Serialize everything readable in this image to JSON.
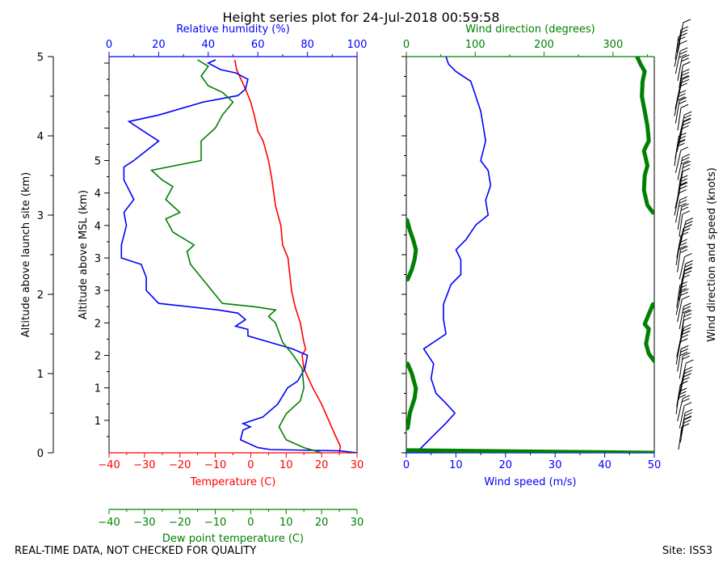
{
  "header": {
    "title": "Height series plot for 24-Jul-2018 00:59:58",
    "footer_left": "REAL-TIME DATA, NOT CHECKED FOR QUALITY",
    "footer_right": "Site: ISS3"
  },
  "colors": {
    "temperature": "#ff0000",
    "humidity": "#0000ff",
    "dewpoint": "#008000",
    "wind_speed": "#0000ff",
    "wind_direction": "#008000",
    "barbs": "#000000"
  },
  "chart_data": [
    {
      "type": "line",
      "name": "thermo-panel",
      "y_left_label": "Altitude above launch site (km)",
      "y_left_range": [
        0,
        5
      ],
      "y_left_ticks": [
        "0",
        "1",
        "2",
        "3",
        "4",
        "5"
      ],
      "y_inner_label": "Altitude above MSL (km)",
      "y_inner_ticks": [
        "0",
        "1",
        "1",
        "2",
        "2",
        "3",
        "3",
        "4",
        "4",
        "5"
      ],
      "x_bottom": {
        "label": "Temperature (C)",
        "range": [
          -40,
          30
        ],
        "ticks": [
          "−40",
          "−30",
          "−20",
          "−10",
          "0",
          "10",
          "20",
          "30"
        ]
      },
      "x_top": {
        "label": "Relative humidity (%)",
        "range": [
          0,
          100
        ],
        "ticks": [
          "0",
          "20",
          "40",
          "60",
          "80",
          "100"
        ]
      },
      "x_dewpoint": {
        "label": "Dew point temperature (C)",
        "range": [
          -40,
          30
        ],
        "ticks": [
          "−40",
          "−30",
          "−20",
          "−10",
          "0",
          "10",
          "20",
          "30"
        ]
      },
      "series": [
        {
          "key": "temperature",
          "axis": "temperature",
          "points": [
            [
              25,
              0
            ],
            [
              25.3,
              0.1
            ],
            [
              24,
              0.25
            ],
            [
              22,
              0.5
            ],
            [
              20,
              0.75
            ],
            [
              17.5,
              1.0
            ],
            [
              15,
              1.3
            ],
            [
              14.5,
              1.5
            ],
            [
              15.5,
              1.6
            ],
            [
              15,
              1.7
            ],
            [
              14,
              2.0
            ],
            [
              12.5,
              2.25
            ],
            [
              11.5,
              2.5
            ],
            [
              10.5,
              3.0
            ],
            [
              9,
              3.2
            ],
            [
              8.5,
              3.5
            ],
            [
              7,
              3.8
            ],
            [
              6,
              4.2
            ],
            [
              5,
              4.5
            ],
            [
              3.5,
              4.8
            ],
            [
              2,
              4.95
            ],
            [
              1,
              5.2
            ],
            [
              0,
              5.4
            ],
            [
              -1.5,
              5.6
            ],
            [
              -4,
              5.9
            ],
            [
              -4.5,
              6.05
            ]
          ]
        },
        {
          "key": "humidity",
          "axis": "humidity",
          "points": [
            [
              100,
              0
            ],
            [
              93,
              0.03
            ],
            [
              65,
              0.05
            ],
            [
              60,
              0.08
            ],
            [
              53,
              0.2
            ],
            [
              54,
              0.35
            ],
            [
              57,
              0.4
            ],
            [
              54,
              0.45
            ],
            [
              58,
              0.5
            ],
            [
              62,
              0.55
            ],
            [
              68,
              0.75
            ],
            [
              72,
              1.0
            ],
            [
              76,
              1.1
            ],
            [
              79,
              1.3
            ],
            [
              80,
              1.5
            ],
            [
              74,
              1.6
            ],
            [
              56,
              1.8
            ],
            [
              56,
              1.9
            ],
            [
              51,
              1.95
            ],
            [
              55,
              2.05
            ],
            [
              52,
              2.15
            ],
            [
              44,
              2.2
            ],
            [
              20,
              2.3
            ],
            [
              15,
              2.5
            ],
            [
              15,
              2.7
            ],
            [
              13,
              2.9
            ],
            [
              5,
              3.0
            ],
            [
              5,
              3.2
            ],
            [
              7,
              3.5
            ],
            [
              6,
              3.7
            ],
            [
              10,
              3.9
            ],
            [
              6,
              4.2
            ],
            [
              6,
              4.4
            ],
            [
              10,
              4.5
            ],
            [
              20,
              4.8
            ],
            [
              12,
              5.0
            ],
            [
              8,
              5.1
            ],
            [
              20,
              5.2
            ],
            [
              38,
              5.4
            ],
            [
              45,
              5.45
            ],
            [
              52,
              5.5
            ],
            [
              55,
              5.6
            ],
            [
              56,
              5.75
            ],
            [
              51,
              5.85
            ],
            [
              45,
              5.9
            ],
            [
              40,
              6.0
            ],
            [
              43,
              6.05
            ]
          ]
        },
        {
          "key": "dewpoint",
          "axis": "dewpoint",
          "points": [
            [
              20,
              0
            ],
            [
              15,
              0.08
            ],
            [
              10,
              0.2
            ],
            [
              8,
              0.4
            ],
            [
              10,
              0.6
            ],
            [
              14,
              0.8
            ],
            [
              15,
              1.0
            ],
            [
              14.5,
              1.3
            ],
            [
              12,
              1.5
            ],
            [
              9,
              1.7
            ],
            [
              7,
              2.0
            ],
            [
              5,
              2.1
            ],
            [
              7,
              2.2
            ],
            [
              1,
              2.25
            ],
            [
              -8,
              2.3
            ],
            [
              -11,
              2.5
            ],
            [
              -17,
              2.9
            ],
            [
              -18,
              3.1
            ],
            [
              -16,
              3.2
            ],
            [
              -22,
              3.4
            ],
            [
              -24,
              3.6
            ],
            [
              -20,
              3.7
            ],
            [
              -24,
              3.9
            ],
            [
              -22,
              4.1
            ],
            [
              -25,
              4.2
            ],
            [
              -28,
              4.35
            ],
            [
              -14,
              4.5
            ],
            [
              -14,
              4.8
            ],
            [
              -10,
              5.0
            ],
            [
              -8,
              5.2
            ],
            [
              -5,
              5.4
            ],
            [
              -8,
              5.55
            ],
            [
              -12,
              5.65
            ],
            [
              -14,
              5.8
            ],
            [
              -12,
              5.95
            ],
            [
              -15,
              6.05
            ]
          ]
        }
      ]
    },
    {
      "type": "line",
      "name": "wind-panel",
      "x_bottom": {
        "label": "Wind speed (m/s)",
        "range": [
          0,
          50
        ],
        "ticks": [
          "0",
          "10",
          "20",
          "30",
          "40",
          "50"
        ]
      },
      "x_top": {
        "label": "Wind direction (degrees)",
        "range": [
          0,
          360
        ],
        "ticks": [
          "0",
          "100",
          "200",
          "300"
        ]
      },
      "y_right_label": "Wind direction and speed (knots)",
      "series": [
        {
          "key": "wind_speed",
          "axis": "speed",
          "points": [
            [
              2,
              0
            ],
            [
              5,
              0.3
            ],
            [
              8,
              0.6
            ],
            [
              9.8,
              0.8
            ],
            [
              8,
              1.0
            ],
            [
              6,
              1.2
            ],
            [
              5,
              1.5
            ],
            [
              5.5,
              1.8
            ],
            [
              3.5,
              2.1
            ],
            [
              5,
              2.2
            ],
            [
              8,
              2.4
            ],
            [
              7.5,
              2.7
            ],
            [
              7.5,
              3.0
            ],
            [
              9,
              3.4
            ],
            [
              11,
              3.6
            ],
            [
              11,
              3.9
            ],
            [
              10,
              4.1
            ],
            [
              12,
              4.3
            ],
            [
              14,
              4.6
            ],
            [
              16.5,
              4.8
            ],
            [
              16,
              5.1
            ],
            [
              17,
              5.4
            ],
            [
              16.5,
              5.7
            ],
            [
              15,
              5.9
            ],
            [
              15.5,
              6.1
            ],
            [
              16,
              6.3
            ],
            [
              15.5,
              6.6
            ],
            [
              15,
              6.9
            ],
            [
              14,
              7.2
            ],
            [
              13,
              7.5
            ],
            [
              10,
              7.7
            ],
            [
              8.5,
              7.85
            ],
            [
              8,
              8.0
            ]
          ]
        },
        {
          "key": "wind_direction_low",
          "axis": "direction",
          "points": [
            [
              358,
              0
            ],
            [
              2,
              0.05
            ]
          ]
        },
        {
          "key": "wind_direction_a",
          "axis": "direction",
          "points": [
            [
              2,
              0.5
            ],
            [
              5,
              0.8
            ],
            [
              12,
              1.1
            ],
            [
              14,
              1.3
            ],
            [
              8,
              1.6
            ],
            [
              2,
              1.8
            ]
          ]
        },
        {
          "key": "wind_direction_b",
          "axis": "direction",
          "points": [
            [
              360,
              1.85
            ],
            [
              352,
              2.0
            ],
            [
              348,
              2.2
            ],
            [
              352,
              2.5
            ],
            [
              346,
              2.6
            ],
            [
              352,
              2.8
            ],
            [
              358,
              3.0
            ]
          ]
        },
        {
          "key": "wind_direction_c",
          "axis": "direction",
          "points": [
            [
              2,
              3.5
            ],
            [
              8,
              3.7
            ],
            [
              12,
              3.9
            ],
            [
              14,
              4.1
            ],
            [
              10,
              4.3
            ],
            [
              5,
              4.5
            ],
            [
              1,
              4.7
            ]
          ]
        },
        {
          "key": "wind_direction_d",
          "axis": "direction",
          "points": [
            [
              358,
              4.85
            ],
            [
              350,
              5.0
            ],
            [
              345,
              5.3
            ],
            [
              346,
              5.6
            ],
            [
              350,
              5.8
            ],
            [
              345,
              6.1
            ],
            [
              352,
              6.3
            ],
            [
              350,
              6.6
            ],
            [
              346,
              6.9
            ],
            [
              342,
              7.2
            ],
            [
              343,
              7.5
            ],
            [
              346,
              7.7
            ],
            [
              340,
              7.85
            ],
            [
              335,
              8.0
            ]
          ]
        }
      ]
    }
  ]
}
